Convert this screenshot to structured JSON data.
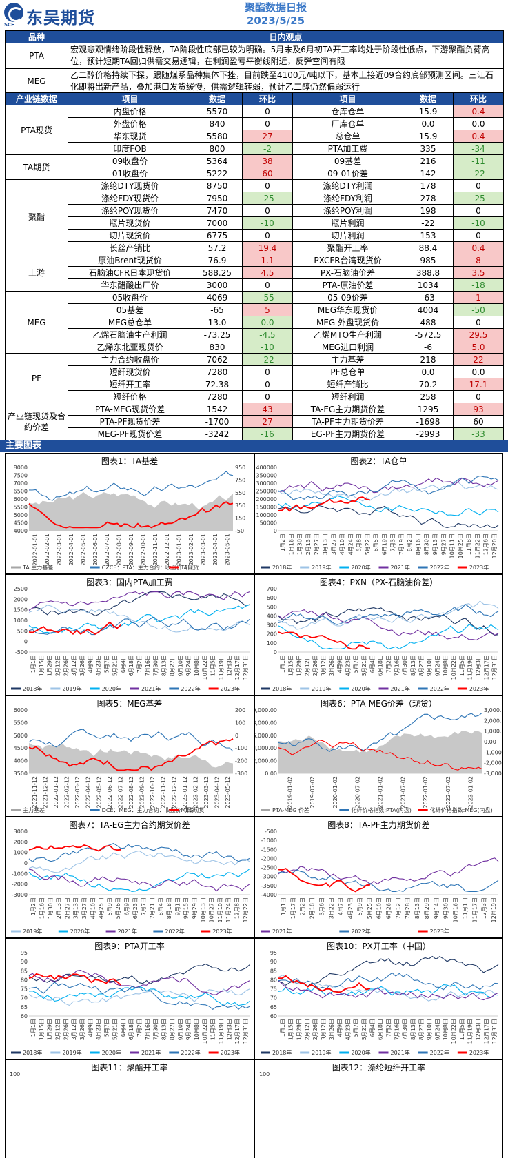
{
  "header": {
    "logo_sub": "SCF",
    "company": "东吴期货",
    "title": "聚酯数据日报",
    "date": "2023/5/25"
  },
  "view": {
    "col_category": "品种",
    "col_view": "日内观点",
    "rows": [
      {
        "category": "PTA",
        "text": "宏观悲观情绪阶段性释放，TA阶段性底部已较为明确。5月末及6月初TA开工率均处于阶段性低点，下游聚酯负荷高位，预计短期TA回归供需交易逻辑，在利润盈亏平衡线附近，反弹空间有限"
      },
      {
        "category": "MEG",
        "text": "乙二醇价格持续下探，跟随煤系品种集体下挫，目前跌至4100元/吨以下，基本上接近09合约底部预测区间。三江石化即将出新产品，叠加港口发货缓慢，供需逻辑转弱，预计乙二醇仍然偏弱运行"
      }
    ]
  },
  "data_table": {
    "headers": [
      "产业链数据",
      "项目",
      "数据",
      "环比",
      "项目",
      "数据",
      "环比"
    ],
    "groups": [
      {
        "category": "PTA现货",
        "rows": [
          [
            "内盘价格",
            "5570",
            "0",
            "",
            "仓库仓单",
            "15.9",
            "0.4",
            "r"
          ],
          [
            "外盘价格",
            "840",
            "0",
            "",
            "厂库仓单",
            "0.0",
            "0.0",
            ""
          ],
          [
            "华东现货",
            "5580",
            "27",
            "r",
            "总仓单",
            "15.9",
            "0.4",
            "r"
          ],
          [
            "印度FOB",
            "800",
            "-2",
            "g",
            "PTA加工费",
            "335",
            "-34",
            "g"
          ]
        ]
      },
      {
        "category": "TA期货",
        "rows": [
          [
            "09收盘价",
            "5364",
            "38",
            "r",
            "09基差",
            "216",
            "-11",
            "g"
          ],
          [
            "01收盘价",
            "5222",
            "60",
            "r",
            "09-01价差",
            "142",
            "-22",
            "g"
          ]
        ]
      },
      {
        "category": "聚酯",
        "rows": [
          [
            "涤纶DTY现货价",
            "8750",
            "0",
            "",
            "涤纶DTY利润",
            "178",
            "0",
            ""
          ],
          [
            "涤纶FDY现货价",
            "7950",
            "-25",
            "g",
            "涤纶FDY利润",
            "278",
            "-25",
            "g"
          ],
          [
            "涤纶POY现货价",
            "7470",
            "0",
            "",
            "涤纶POY利润",
            "198",
            "0",
            ""
          ],
          [
            "瓶片现货价",
            "7000",
            "-10",
            "g",
            "瓶片利润",
            "-22",
            "-10",
            "g"
          ],
          [
            "切片现货价",
            "6775",
            "0",
            "",
            "切片利润",
            "153",
            "0",
            ""
          ],
          [
            "长丝产销比",
            "57.2",
            "19.4",
            "r",
            "聚酯开工率",
            "88.4",
            "0.4",
            "r"
          ]
        ]
      },
      {
        "category": "上游",
        "rows": [
          [
            "原油Brent现货价",
            "76.9",
            "1.1",
            "r",
            "PXCFR台湾现货价",
            "985",
            "8",
            "r"
          ],
          [
            "石脑油CFR日本现货价",
            "588.25",
            "4.5",
            "r",
            "PX-石脑油价差",
            "388.8",
            "3.5",
            "r"
          ],
          [
            "华东醋酸出厂价",
            "3000",
            "0",
            "",
            "PTA-原油价差",
            "1034",
            "-18",
            "g"
          ]
        ]
      },
      {
        "category": "MEG",
        "rows": [
          [
            "05收盘价",
            "4069",
            "-55",
            "g",
            "05-09价差",
            "-63",
            "1",
            "r"
          ],
          [
            "05基差",
            "-65",
            "5",
            "r",
            "MEG华东现货价",
            "4004",
            "-50",
            "g"
          ],
          [
            "MEG总仓单",
            "13.0",
            "0.0",
            "g",
            "MEG 外盘现货价",
            "488",
            "0",
            ""
          ],
          [
            "乙烯石脑油生产利润",
            "-73.25",
            "-4.5",
            "g",
            "乙烯MTO生产利润",
            "-572.5",
            "29.5",
            "r"
          ],
          [
            "乙烯东北亚现货价",
            "830",
            "-10",
            "g",
            "MEG进口利润",
            "-6",
            "5.0",
            "r"
          ]
        ]
      },
      {
        "category": "PF",
        "rows": [
          [
            "主力合约收盘价",
            "7062",
            "-22",
            "g",
            "主力基差",
            "218",
            "22",
            "r"
          ],
          [
            "短纤现货价",
            "7280",
            "0",
            "",
            "PF总仓单",
            "0.0",
            "0.0",
            ""
          ],
          [
            "短纤开工率",
            "72.38",
            "0",
            "",
            "短纤产销比",
            "70.2",
            "17.1",
            "r"
          ],
          [
            "短纤价格",
            "7280",
            "0",
            "",
            "短纤利润",
            "258",
            "0",
            ""
          ]
        ]
      },
      {
        "category": "产业链现货及合约价差",
        "rows": [
          [
            "PTA-MEG现货价差",
            "1542",
            "43",
            "r",
            "TA-EG主力期货价差",
            "1295",
            "93",
            "r"
          ],
          [
            "PTA-PF现货价差",
            "-1700",
            "27",
            "r",
            "TA-PF主力期货价差",
            "-1698",
            "60",
            ""
          ],
          [
            "MEG-PF现货价差",
            "-3242",
            "-16",
            "g",
            "EG-PF主力期货价差",
            "-2993",
            "-33",
            "g"
          ]
        ]
      }
    ]
  },
  "section": {
    "title": "主要图表"
  },
  "charts": [
    {
      "title": "图表1：TA基差",
      "legend": [
        "TA 主力基差",
        "CZCE：PTA：主力合约：收盘价（日）",
        "TA现货"
      ],
      "yleft": [
        "8000",
        "7500",
        "7000",
        "6500",
        "6000",
        "5500",
        "5000",
        "4500",
        "4000"
      ],
      "yright": [
        "950",
        "750",
        "550",
        "350",
        "150",
        "-50"
      ],
      "xticks": [
        "2022-01-01",
        "2022-02-01",
        "2022-03-01",
        "2022-04-01",
        "2022-05-01",
        "2022-06-01",
        "2022-07-01",
        "2022-08-01",
        "2022-09-01",
        "2022-10-01",
        "2022-11-01",
        "2022-12-01",
        "2023-01-01",
        "2023-02-01",
        "2023-03-01",
        "2023-04-01",
        "2023-05-01"
      ]
    },
    {
      "title": "图表2：TA仓单",
      "legend": [
        "2018年",
        "2019年",
        "2020年",
        "2021年",
        "2022年",
        "2023年"
      ],
      "yleft": [
        "400000",
        "350000",
        "300000",
        "250000",
        "200000",
        "150000",
        "100000",
        "50000",
        "0"
      ],
      "yright": [],
      "xticks": [
        "1月2日",
        "1月16日",
        "1月30日",
        "2月13日",
        "2月27日",
        "3月13日",
        "3月27日",
        "4月10日",
        "4月24日",
        "5月8日",
        "5月22日",
        "6月5日",
        "6月19日",
        "7月3日",
        "7月19日",
        "8月2日",
        "8月16日",
        "8月30日",
        "9月13日",
        "9月27日",
        "10月11日",
        "10月25日",
        "11月8日",
        "11月22日",
        "12月6日",
        "12月20日"
      ]
    },
    {
      "title": "图表3：国内PTA加工费",
      "legend": [
        "2018年",
        "2019年",
        "2020年",
        "2021年",
        "2022年",
        "2023年"
      ],
      "yleft": [
        "2500",
        "2000",
        "1500",
        "1000",
        "500",
        "0",
        "-500"
      ],
      "yright": [],
      "xticks": [
        "1月1日",
        "1月15日",
        "1月29日",
        "2月12日",
        "2月26日",
        "3月12日",
        "3月26日",
        "4月9日",
        "4月23日",
        "5月7日",
        "5月21日",
        "6月4日",
        "6月18日",
        "7月2日",
        "7月16日",
        "7月30日",
        "8月13日",
        "8月27日",
        "9月10日",
        "9月24日",
        "10月8日",
        "10月22日",
        "11月5日",
        "11月19日",
        "12月3日",
        "12月17日",
        "12月31日"
      ]
    },
    {
      "title": "图表4：PXN（PX-石脑油价差）",
      "legend": [
        "2018年",
        "2019年",
        "2020年",
        "2021年",
        "2022年",
        "2023年"
      ],
      "yleft": [
        "700",
        "600",
        "500",
        "400",
        "300",
        "200",
        "100",
        "0"
      ],
      "yright": [],
      "xticks": [
        "1月1日",
        "1月15日",
        "1月29日",
        "2月12日",
        "2月26日",
        "3月12日",
        "3月26日",
        "4月9日",
        "4月23日",
        "5月7日",
        "5月21日",
        "6月4日",
        "6月18日",
        "7月2日",
        "7月16日",
        "7月30日",
        "8月13日",
        "8月27日",
        "9月10日",
        "9月24日",
        "10月8日",
        "10月22日",
        "11月5日",
        "11月19日",
        "12月3日",
        "12月17日",
        "12月31日"
      ]
    },
    {
      "title": "图表5：MEG基差",
      "legend": [
        "主力基差",
        "DCE：MEG：主力合约：收盘价（日）",
        "MEG现货"
      ],
      "yleft": [
        "6000",
        "5500",
        "5000",
        "4500",
        "4000",
        "3500"
      ],
      "yright": [
        "200",
        "100",
        "0",
        "-100",
        "-200",
        "-300"
      ],
      "xticks": [
        "2021-11-12",
        "2021-12-12",
        "2022-01-12",
        "2022-02-12",
        "2022-03-12",
        "2022-04-12",
        "2022-05-12",
        "2022-06-12",
        "2022-07-12",
        "2022-08-12",
        "2022-09-12",
        "2022-10-12",
        "2022-11-12",
        "2022-12-12",
        "2023-01-12",
        "2023-02-12",
        "2023-03-12",
        "2023-04-12",
        "2023-05-12"
      ]
    },
    {
      "title": "图表6：PTA-MEG价差（现货）",
      "legend": [
        "PTA-MEG 价差",
        "化纤价格指数:PTA(内盘)",
        "化纤价格指数:MEG(内盘)"
      ],
      "yleft": [
        "10,000.00",
        "8,000.00",
        "6,000.00",
        "4,000.00",
        "2,000.00",
        "0.00"
      ],
      "yright": [
        "3,000.00",
        "2,000.00",
        "1,000.00",
        "0.00",
        "-1,000.00",
        "-2,000.00",
        "-3,000.00"
      ],
      "xticks": [
        "2019-01-02",
        "2019-07-02",
        "2020-01-02",
        "2020-07-02",
        "2021-01-02",
        "2021-07-02",
        "2022-01-02",
        "2022-07-02",
        "2023-01-02"
      ]
    },
    {
      "title": "图表7：TA-EG主力合约期货价差",
      "legend": [
        "2019年",
        "2020年",
        "2021年",
        "2022年",
        "2023年"
      ],
      "yleft": [
        "3000",
        "2000",
        "1000",
        "0",
        "-1000",
        "-2000",
        "-3000"
      ],
      "yright": [],
      "xticks": [
        "1月2日",
        "1月16日",
        "1月30日",
        "2月13日",
        "2月27日",
        "3月13日",
        "3月27日",
        "4月10日",
        "4月25日",
        "5月9日",
        "5月26日",
        "6月9日",
        "6月23日",
        "7月7日",
        "7月21日",
        "8月4日",
        "8月18日",
        "9月1日",
        "9月15日",
        "9月29日",
        "10月13日",
        "10月27日",
        "11月10日",
        "11月24日",
        "12月8日",
        "12月22日"
      ]
    },
    {
      "title": "图表8：TA-PF主力期货价差",
      "legend": [
        "2021年",
        "2022年",
        "2023年"
      ],
      "yleft": [
        "-500",
        "-1000",
        "-1500",
        "-2000",
        "-2500",
        "-3000",
        "-3500",
        "-4000"
      ],
      "yright": [],
      "xticks": [
        "1月1日",
        "1月17日",
        "2月2日",
        "2月18日",
        "3月6日",
        "3月22日",
        "4月7日",
        "4月23日",
        "5月9日",
        "5月25日",
        "6月10日",
        "6月26日",
        "7月12日",
        "7月28日",
        "8月13日",
        "8月29日",
        "9月14日",
        "9月30日",
        "10月16日",
        "11月1日",
        "11月17日",
        "12月3日",
        "12月19日"
      ]
    },
    {
      "title": "图表9：PTA开工率",
      "legend": [
        "2018年",
        "2019年",
        "2020年",
        "2021年",
        "2022年",
        "2023年"
      ],
      "yleft": [
        "95",
        "90",
        "85",
        "80",
        "75",
        "70",
        "65",
        "60"
      ],
      "yright": [],
      "xticks": [
        "1月1日",
        "1月15日",
        "1月29日",
        "2月12日",
        "2月26日",
        "3月12日",
        "3月26日",
        "4月9日",
        "4月23日",
        "5月7日",
        "5月21日",
        "6月4日",
        "6月18日",
        "7月2日",
        "7月16日",
        "7月30日",
        "8月13日",
        "8月27日",
        "9月10日",
        "9月24日",
        "10月8日",
        "10月22日",
        "11月5日",
        "11月19日",
        "12月3日",
        "12月17日",
        "12月31日"
      ]
    },
    {
      "title": "图表10：PX开工率（中国）",
      "legend": [
        "2018年",
        "2019年",
        "2020年",
        "2021年",
        "2022年",
        "2023年"
      ],
      "yleft": [
        "95",
        "90",
        "85",
        "80",
        "75",
        "70",
        "65",
        "60"
      ],
      "yright": [],
      "xticks": [
        "1月1日",
        "1月15日",
        "1月29日",
        "2月12日",
        "2月26日",
        "3月12日",
        "3月26日",
        "4月9日",
        "4月23日",
        "5月7日",
        "5月21日",
        "6月4日",
        "6月18日",
        "7月2日",
        "7月16日",
        "7月30日",
        "8月13日",
        "8月27日",
        "9月10日",
        "9月24日",
        "10月8日",
        "10月22日",
        "11月5日",
        "11月19日",
        "12月3日",
        "12月17日",
        "12月31日"
      ]
    }
  ],
  "charts_bottom": [
    {
      "title": "图表11：聚酯开工率",
      "ytop": "100"
    },
    {
      "title": "图表12：涤纶短纤开工率",
      "ytop": "100"
    }
  ],
  "colors": {
    "blue_dark": "#1f4e9a",
    "y2018": "#1f3864",
    "y2019": "#9dc3e6",
    "y2020": "#00b0f0",
    "y2021": "#7030a0",
    "y2022": "#2e75b6",
    "y2023": "#ff0000",
    "gray": "#a6a6a6"
  }
}
